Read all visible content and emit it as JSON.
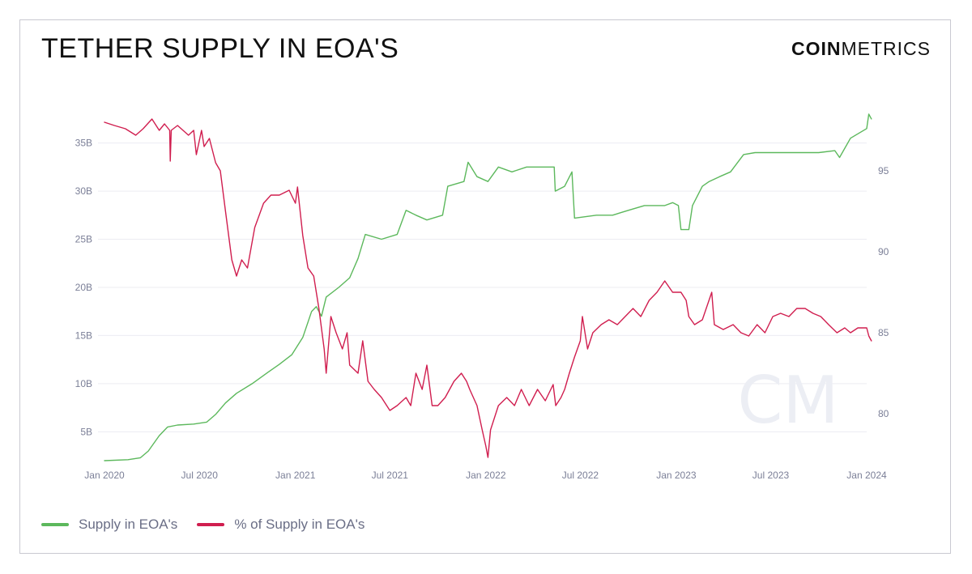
{
  "title": "TETHER SUPPLY IN EOA'S",
  "logo": {
    "bold": "COIN",
    "light": "METRICS"
  },
  "watermark": "CM",
  "colors": {
    "supply": "#5cb85c",
    "percent": "#d01e4f",
    "grid": "#ececf2",
    "tick": "#7b7f97"
  },
  "chart_data": {
    "type": "line",
    "title": "TETHER SUPPLY IN EOA'S",
    "x_ticks": [
      "Jan 2020",
      "Jul 2020",
      "Jan 2021",
      "Jul 2021",
      "Jan 2022",
      "Jul 2022",
      "Jan 2023",
      "Jul 2023",
      "Jan 2024"
    ],
    "y_left": {
      "ticks": [
        "5B",
        "10B",
        "15B",
        "20B",
        "25B",
        "30B",
        "35B"
      ],
      "min": 2,
      "max": 38.5,
      "unit": "B"
    },
    "y_right": {
      "ticks": [
        "80",
        "85",
        "90",
        "95"
      ],
      "min": 77.1,
      "max": 98.8
    },
    "legend": [
      "Supply in EOA's",
      "% of Supply in EOA's"
    ],
    "legend_position": "bottom-left",
    "grid": "horizontal",
    "series": [
      {
        "name": "Supply in EOA's",
        "axis": "left",
        "color": "#5cb85c",
        "points": [
          [
            "2020-01-01",
            2.0
          ],
          [
            "2020-02-15",
            2.1
          ],
          [
            "2020-03-10",
            2.3
          ],
          [
            "2020-03-25",
            3.0
          ],
          [
            "2020-04-15",
            4.6
          ],
          [
            "2020-05-01",
            5.5
          ],
          [
            "2020-05-20",
            5.7
          ],
          [
            "2020-06-20",
            5.8
          ],
          [
            "2020-07-15",
            6.0
          ],
          [
            "2020-08-01",
            6.8
          ],
          [
            "2020-08-20",
            8.0
          ],
          [
            "2020-09-10",
            9.0
          ],
          [
            "2020-10-10",
            10.0
          ],
          [
            "2020-11-10",
            11.2
          ],
          [
            "2020-12-01",
            12.0
          ],
          [
            "2020-12-25",
            13.0
          ],
          [
            "2021-01-15",
            14.8
          ],
          [
            "2021-02-01",
            17.5
          ],
          [
            "2021-02-10",
            18.0
          ],
          [
            "2021-02-20",
            17.0
          ],
          [
            "2021-03-01",
            19.0
          ],
          [
            "2021-03-25",
            20.0
          ],
          [
            "2021-04-15",
            21.0
          ],
          [
            "2021-05-01",
            23.0
          ],
          [
            "2021-05-15",
            25.5
          ],
          [
            "2021-06-15",
            25.0
          ],
          [
            "2021-07-15",
            25.5
          ],
          [
            "2021-08-01",
            28.0
          ],
          [
            "2021-08-20",
            27.5
          ],
          [
            "2021-09-10",
            27.0
          ],
          [
            "2021-10-10",
            27.5
          ],
          [
            "2021-10-20",
            30.5
          ],
          [
            "2021-11-20",
            31.0
          ],
          [
            "2021-11-28",
            33.0
          ],
          [
            "2021-12-15",
            31.5
          ],
          [
            "2022-01-05",
            31.0
          ],
          [
            "2022-01-25",
            32.5
          ],
          [
            "2022-02-20",
            32.0
          ],
          [
            "2022-03-20",
            32.5
          ],
          [
            "2022-04-10",
            32.5
          ],
          [
            "2022-05-12",
            32.5
          ],
          [
            "2022-05-14",
            30.0
          ],
          [
            "2022-06-01",
            30.5
          ],
          [
            "2022-06-15",
            32.0
          ],
          [
            "2022-06-20",
            27.2
          ],
          [
            "2022-08-01",
            27.5
          ],
          [
            "2022-09-01",
            27.5
          ],
          [
            "2022-10-01",
            28.0
          ],
          [
            "2022-11-01",
            28.5
          ],
          [
            "2022-12-10",
            28.5
          ],
          [
            "2022-12-25",
            28.8
          ],
          [
            "2023-01-05",
            28.5
          ],
          [
            "2023-01-10",
            26.0
          ],
          [
            "2023-01-25",
            26.0
          ],
          [
            "2023-02-01",
            28.5
          ],
          [
            "2023-02-20",
            30.5
          ],
          [
            "2023-03-05",
            31.0
          ],
          [
            "2023-03-25",
            31.5
          ],
          [
            "2023-04-15",
            32.0
          ],
          [
            "2023-05-10",
            33.8
          ],
          [
            "2023-06-01",
            34.0
          ],
          [
            "2023-08-01",
            34.0
          ],
          [
            "2023-10-01",
            34.0
          ],
          [
            "2023-11-01",
            34.2
          ],
          [
            "2023-11-10",
            33.5
          ],
          [
            "2023-12-01",
            35.5
          ],
          [
            "2024-01-01",
            36.5
          ],
          [
            "2024-01-05",
            38.0
          ],
          [
            "2024-01-10",
            37.5
          ]
        ]
      },
      {
        "name": "% of Supply in EOA's",
        "axis": "right",
        "color": "#d01e4f",
        "points": [
          [
            "2020-01-01",
            98.0
          ],
          [
            "2020-01-20",
            97.8
          ],
          [
            "2020-02-10",
            97.6
          ],
          [
            "2020-03-01",
            97.2
          ],
          [
            "2020-03-15",
            97.6
          ],
          [
            "2020-04-01",
            98.2
          ],
          [
            "2020-04-15",
            97.5
          ],
          [
            "2020-04-25",
            97.9
          ],
          [
            "2020-05-05",
            97.5
          ],
          [
            "2020-05-06",
            95.6
          ],
          [
            "2020-05-08",
            97.5
          ],
          [
            "2020-05-20",
            97.8
          ],
          [
            "2020-06-10",
            97.2
          ],
          [
            "2020-06-20",
            97.5
          ],
          [
            "2020-06-25",
            96.0
          ],
          [
            "2020-07-05",
            97.5
          ],
          [
            "2020-07-10",
            96.5
          ],
          [
            "2020-07-20",
            97.0
          ],
          [
            "2020-08-01",
            95.5
          ],
          [
            "2020-08-10",
            95.0
          ],
          [
            "2020-08-20",
            92.5
          ],
          [
            "2020-09-01",
            89.5
          ],
          [
            "2020-09-10",
            88.5
          ],
          [
            "2020-09-20",
            89.5
          ],
          [
            "2020-10-01",
            89.0
          ],
          [
            "2020-10-15",
            91.5
          ],
          [
            "2020-11-01",
            93.0
          ],
          [
            "2020-11-15",
            93.5
          ],
          [
            "2020-12-01",
            93.5
          ],
          [
            "2020-12-20",
            93.8
          ],
          [
            "2021-01-01",
            93.0
          ],
          [
            "2021-01-05",
            94.0
          ],
          [
            "2021-01-15",
            91.0
          ],
          [
            "2021-01-25",
            89.0
          ],
          [
            "2021-02-05",
            88.5
          ],
          [
            "2021-02-15",
            86.5
          ],
          [
            "2021-02-25",
            84.0
          ],
          [
            "2021-03-01",
            82.5
          ],
          [
            "2021-03-10",
            86.0
          ],
          [
            "2021-03-20",
            85.0
          ],
          [
            "2021-04-01",
            84.0
          ],
          [
            "2021-04-10",
            85.0
          ],
          [
            "2021-04-15",
            83.0
          ],
          [
            "2021-05-01",
            82.5
          ],
          [
            "2021-05-10",
            84.5
          ],
          [
            "2021-05-20",
            82.0
          ],
          [
            "2021-06-01",
            81.5
          ],
          [
            "2021-06-15",
            81.0
          ],
          [
            "2021-07-01",
            80.2
          ],
          [
            "2021-07-15",
            80.5
          ],
          [
            "2021-08-01",
            81.0
          ],
          [
            "2021-08-10",
            80.5
          ],
          [
            "2021-08-20",
            82.5
          ],
          [
            "2021-09-01",
            81.5
          ],
          [
            "2021-09-10",
            83.0
          ],
          [
            "2021-09-20",
            80.5
          ],
          [
            "2021-10-01",
            80.5
          ],
          [
            "2021-10-15",
            81.0
          ],
          [
            "2021-11-01",
            82.0
          ],
          [
            "2021-11-15",
            82.5
          ],
          [
            "2021-11-25",
            82.0
          ],
          [
            "2021-12-01",
            81.5
          ],
          [
            "2021-12-15",
            80.5
          ],
          [
            "2021-12-25",
            79.0
          ],
          [
            "2022-01-01",
            78.0
          ],
          [
            "2022-01-05",
            77.3
          ],
          [
            "2022-01-10",
            79.0
          ],
          [
            "2022-01-25",
            80.5
          ],
          [
            "2022-02-10",
            81.0
          ],
          [
            "2022-02-25",
            80.5
          ],
          [
            "2022-03-10",
            81.5
          ],
          [
            "2022-03-25",
            80.5
          ],
          [
            "2022-04-10",
            81.5
          ],
          [
            "2022-04-25",
            80.8
          ],
          [
            "2022-05-10",
            81.8
          ],
          [
            "2022-05-15",
            80.5
          ],
          [
            "2022-05-25",
            81.0
          ],
          [
            "2022-06-01",
            81.5
          ],
          [
            "2022-06-10",
            82.5
          ],
          [
            "2022-06-20",
            83.5
          ],
          [
            "2022-07-01",
            84.5
          ],
          [
            "2022-07-05",
            86.0
          ],
          [
            "2022-07-15",
            84.0
          ],
          [
            "2022-07-25",
            85.0
          ],
          [
            "2022-08-10",
            85.5
          ],
          [
            "2022-08-25",
            85.8
          ],
          [
            "2022-09-10",
            85.5
          ],
          [
            "2022-09-25",
            86.0
          ],
          [
            "2022-10-10",
            86.5
          ],
          [
            "2022-10-25",
            86.0
          ],
          [
            "2022-11-10",
            87.0
          ],
          [
            "2022-11-25",
            87.5
          ],
          [
            "2022-12-10",
            88.2
          ],
          [
            "2022-12-25",
            87.5
          ],
          [
            "2023-01-10",
            87.5
          ],
          [
            "2023-01-20",
            87.0
          ],
          [
            "2023-01-25",
            86.0
          ],
          [
            "2023-02-05",
            85.5
          ],
          [
            "2023-02-20",
            85.8
          ],
          [
            "2023-03-10",
            87.5
          ],
          [
            "2023-03-15",
            85.5
          ],
          [
            "2023-04-01",
            85.2
          ],
          [
            "2023-04-20",
            85.5
          ],
          [
            "2023-05-05",
            85.0
          ],
          [
            "2023-05-20",
            84.8
          ],
          [
            "2023-06-05",
            85.5
          ],
          [
            "2023-06-20",
            85.0
          ],
          [
            "2023-07-05",
            86.0
          ],
          [
            "2023-07-20",
            86.2
          ],
          [
            "2023-08-05",
            86.0
          ],
          [
            "2023-08-20",
            86.5
          ],
          [
            "2023-09-05",
            86.5
          ],
          [
            "2023-09-20",
            86.2
          ],
          [
            "2023-10-05",
            86.0
          ],
          [
            "2023-10-20",
            85.5
          ],
          [
            "2023-11-05",
            85.0
          ],
          [
            "2023-11-20",
            85.3
          ],
          [
            "2023-12-01",
            85.0
          ],
          [
            "2023-12-15",
            85.3
          ],
          [
            "2024-01-01",
            85.3
          ],
          [
            "2024-01-05",
            84.8
          ],
          [
            "2024-01-10",
            84.5
          ]
        ]
      }
    ]
  }
}
